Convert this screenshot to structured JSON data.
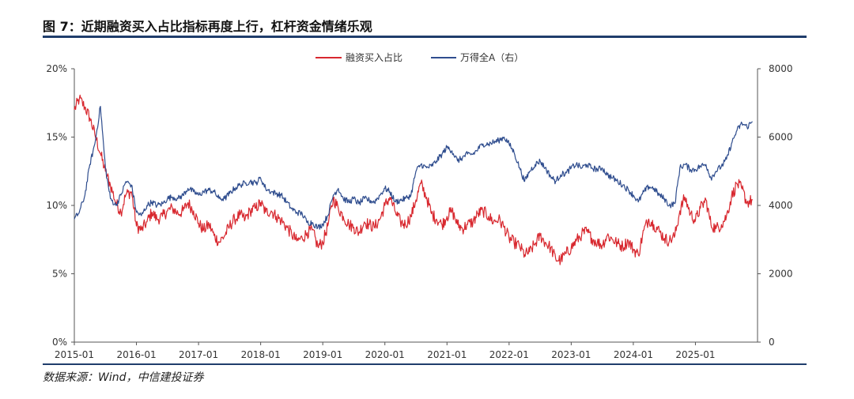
{
  "header": {
    "title": "图 7：近期融资买入占比指标再度上行，杠杆资金情绪乐观"
  },
  "footer": {
    "source": "数据来源：Wind，中信建投证券"
  },
  "colors": {
    "red_series": "#d8282f",
    "blue_series": "#2f4d8e",
    "rule": "#1f3d6b",
    "axis": "#555555"
  },
  "chart_data": {
    "type": "line",
    "title": "",
    "legend": [
      "融资买入占比",
      "万得全A（右）"
    ],
    "legend_placement": "top-center",
    "x_ticks": [
      "2015-01",
      "2016-01",
      "2017-01",
      "2018-01",
      "2019-01",
      "2020-01",
      "2021-01",
      "2022-01",
      "2023-01",
      "2024-01",
      "2025-01"
    ],
    "x_range": [
      2015.0,
      2026.0
    ],
    "y_left": {
      "ticks": [
        "0%",
        "5%",
        "10%",
        "15%",
        "20%"
      ],
      "range": [
        0,
        20
      ]
    },
    "y_right": {
      "ticks": [
        "0",
        "2000",
        "4000",
        "6000",
        "8000"
      ],
      "range": [
        0,
        8000
      ]
    },
    "series": [
      {
        "name": "融资买入占比",
        "axis": "left",
        "points": [
          [
            2015.0,
            17.0
          ],
          [
            2015.08,
            17.8
          ],
          [
            2015.17,
            17.2
          ],
          [
            2015.25,
            16.4
          ],
          [
            2015.33,
            15.2
          ],
          [
            2015.42,
            13.8
          ],
          [
            2015.5,
            12.5
          ],
          [
            2015.58,
            11.5
          ],
          [
            2015.67,
            10.2
          ],
          [
            2015.75,
            9.5
          ],
          [
            2015.83,
            10.8
          ],
          [
            2015.92,
            11.0
          ],
          [
            2016.0,
            8.5
          ],
          [
            2016.08,
            8.2
          ],
          [
            2016.17,
            8.8
          ],
          [
            2016.25,
            9.5
          ],
          [
            2016.33,
            9.0
          ],
          [
            2016.42,
            9.2
          ],
          [
            2016.5,
            9.6
          ],
          [
            2016.58,
            9.8
          ],
          [
            2016.67,
            9.4
          ],
          [
            2016.75,
            9.6
          ],
          [
            2016.83,
            10.2
          ],
          [
            2016.92,
            9.6
          ],
          [
            2017.0,
            8.7
          ],
          [
            2017.08,
            8.2
          ],
          [
            2017.17,
            8.6
          ],
          [
            2017.25,
            7.8
          ],
          [
            2017.33,
            7.3
          ],
          [
            2017.42,
            7.8
          ],
          [
            2017.5,
            8.5
          ],
          [
            2017.58,
            9.0
          ],
          [
            2017.67,
            9.3
          ],
          [
            2017.75,
            9.0
          ],
          [
            2017.83,
            9.6
          ],
          [
            2017.92,
            9.8
          ],
          [
            2018.0,
            10.2
          ],
          [
            2018.08,
            9.5
          ],
          [
            2018.17,
            9.6
          ],
          [
            2018.25,
            9.2
          ],
          [
            2018.33,
            8.9
          ],
          [
            2018.42,
            8.4
          ],
          [
            2018.5,
            7.9
          ],
          [
            2018.58,
            7.4
          ],
          [
            2018.67,
            7.6
          ],
          [
            2018.75,
            8.0
          ],
          [
            2018.83,
            8.2
          ],
          [
            2018.92,
            7.0
          ],
          [
            2019.0,
            7.3
          ],
          [
            2019.08,
            8.5
          ],
          [
            2019.17,
            10.5
          ],
          [
            2019.25,
            9.8
          ],
          [
            2019.33,
            9.2
          ],
          [
            2019.42,
            8.6
          ],
          [
            2019.5,
            8.4
          ],
          [
            2019.58,
            8.0
          ],
          [
            2019.67,
            8.8
          ],
          [
            2019.75,
            8.6
          ],
          [
            2019.83,
            8.4
          ],
          [
            2019.92,
            9.0
          ],
          [
            2020.0,
            10.0
          ],
          [
            2020.08,
            10.6
          ],
          [
            2020.17,
            9.5
          ],
          [
            2020.25,
            8.8
          ],
          [
            2020.33,
            8.6
          ],
          [
            2020.42,
            9.2
          ],
          [
            2020.5,
            10.4
          ],
          [
            2020.58,
            11.6
          ],
          [
            2020.67,
            10.6
          ],
          [
            2020.75,
            9.4
          ],
          [
            2020.83,
            9.0
          ],
          [
            2020.92,
            8.6
          ],
          [
            2021.0,
            9.2
          ],
          [
            2021.08,
            9.6
          ],
          [
            2021.17,
            8.6
          ],
          [
            2021.25,
            8.3
          ],
          [
            2021.33,
            8.6
          ],
          [
            2021.42,
            8.8
          ],
          [
            2021.5,
            9.4
          ],
          [
            2021.58,
            9.6
          ],
          [
            2021.67,
            9.2
          ],
          [
            2021.75,
            8.8
          ],
          [
            2021.83,
            9.0
          ],
          [
            2021.92,
            8.4
          ],
          [
            2022.0,
            7.6
          ],
          [
            2022.08,
            7.3
          ],
          [
            2022.17,
            7.0
          ],
          [
            2022.25,
            6.4
          ],
          [
            2022.33,
            6.6
          ],
          [
            2022.42,
            7.2
          ],
          [
            2022.5,
            7.8
          ],
          [
            2022.58,
            7.3
          ],
          [
            2022.67,
            6.9
          ],
          [
            2022.75,
            6.1
          ],
          [
            2022.83,
            6.0
          ],
          [
            2022.92,
            6.5
          ],
          [
            2023.0,
            6.9
          ],
          [
            2023.08,
            7.4
          ],
          [
            2023.17,
            7.9
          ],
          [
            2023.25,
            8.1
          ],
          [
            2023.33,
            7.6
          ],
          [
            2023.42,
            7.3
          ],
          [
            2023.5,
            7.1
          ],
          [
            2023.58,
            7.8
          ],
          [
            2023.67,
            7.5
          ],
          [
            2023.75,
            7.2
          ],
          [
            2023.83,
            7.0
          ],
          [
            2023.92,
            7.4
          ],
          [
            2024.0,
            6.8
          ],
          [
            2024.08,
            6.4
          ],
          [
            2024.17,
            8.2
          ],
          [
            2024.25,
            9.0
          ],
          [
            2024.33,
            8.6
          ],
          [
            2024.42,
            8.1
          ],
          [
            2024.5,
            7.6
          ],
          [
            2024.58,
            7.4
          ],
          [
            2024.67,
            7.8
          ],
          [
            2024.75,
            9.6
          ],
          [
            2024.83,
            10.6
          ],
          [
            2024.92,
            9.4
          ],
          [
            2025.0,
            8.9
          ],
          [
            2025.08,
            9.8
          ],
          [
            2025.17,
            10.4
          ],
          [
            2025.25,
            8.6
          ],
          [
            2025.33,
            8.3
          ],
          [
            2025.42,
            8.6
          ],
          [
            2025.5,
            9.2
          ],
          [
            2025.58,
            10.6
          ],
          [
            2025.67,
            11.6
          ],
          [
            2025.75,
            11.2
          ],
          [
            2025.83,
            10.2
          ],
          [
            2025.92,
            10.4
          ]
        ]
      },
      {
        "name": "万得全A（右）",
        "axis": "right",
        "points": [
          [
            2015.0,
            3600
          ],
          [
            2015.08,
            3800
          ],
          [
            2015.17,
            4300
          ],
          [
            2015.25,
            5200
          ],
          [
            2015.33,
            5800
          ],
          [
            2015.42,
            6900
          ],
          [
            2015.5,
            5100
          ],
          [
            2015.58,
            4200
          ],
          [
            2015.67,
            4000
          ],
          [
            2015.75,
            4300
          ],
          [
            2015.83,
            4700
          ],
          [
            2015.92,
            4600
          ],
          [
            2016.0,
            3800
          ],
          [
            2016.08,
            3700
          ],
          [
            2016.17,
            4000
          ],
          [
            2016.25,
            4100
          ],
          [
            2016.33,
            4000
          ],
          [
            2016.42,
            4050
          ],
          [
            2016.5,
            4200
          ],
          [
            2016.58,
            4250
          ],
          [
            2016.67,
            4200
          ],
          [
            2016.75,
            4300
          ],
          [
            2016.83,
            4500
          ],
          [
            2016.92,
            4400
          ],
          [
            2017.0,
            4300
          ],
          [
            2017.08,
            4400
          ],
          [
            2017.17,
            4450
          ],
          [
            2017.25,
            4400
          ],
          [
            2017.33,
            4200
          ],
          [
            2017.42,
            4200
          ],
          [
            2017.5,
            4350
          ],
          [
            2017.58,
            4500
          ],
          [
            2017.67,
            4600
          ],
          [
            2017.75,
            4650
          ],
          [
            2017.83,
            4700
          ],
          [
            2017.92,
            4650
          ],
          [
            2018.0,
            4800
          ],
          [
            2018.08,
            4500
          ],
          [
            2018.17,
            4400
          ],
          [
            2018.25,
            4350
          ],
          [
            2018.33,
            4300
          ],
          [
            2018.42,
            4100
          ],
          [
            2018.5,
            3900
          ],
          [
            2018.58,
            3800
          ],
          [
            2018.67,
            3750
          ],
          [
            2018.75,
            3500
          ],
          [
            2018.83,
            3500
          ],
          [
            2018.92,
            3350
          ],
          [
            2019.0,
            3450
          ],
          [
            2019.08,
            3700
          ],
          [
            2019.17,
            4300
          ],
          [
            2019.25,
            4500
          ],
          [
            2019.33,
            4200
          ],
          [
            2019.42,
            4100
          ],
          [
            2019.5,
            4200
          ],
          [
            2019.58,
            4050
          ],
          [
            2019.67,
            4200
          ],
          [
            2019.75,
            4150
          ],
          [
            2019.83,
            4100
          ],
          [
            2019.92,
            4300
          ],
          [
            2020.0,
            4500
          ],
          [
            2020.08,
            4400
          ],
          [
            2020.17,
            4100
          ],
          [
            2020.25,
            4150
          ],
          [
            2020.33,
            4200
          ],
          [
            2020.42,
            4300
          ],
          [
            2020.5,
            5000
          ],
          [
            2020.58,
            5200
          ],
          [
            2020.67,
            5100
          ],
          [
            2020.75,
            5150
          ],
          [
            2020.83,
            5300
          ],
          [
            2020.92,
            5500
          ],
          [
            2021.0,
            5700
          ],
          [
            2021.08,
            5600
          ],
          [
            2021.17,
            5300
          ],
          [
            2021.25,
            5400
          ],
          [
            2021.33,
            5500
          ],
          [
            2021.42,
            5500
          ],
          [
            2021.5,
            5650
          ],
          [
            2021.58,
            5800
          ],
          [
            2021.67,
            5800
          ],
          [
            2021.75,
            5850
          ],
          [
            2021.83,
            5900
          ],
          [
            2021.92,
            6000
          ],
          [
            2022.0,
            5800
          ],
          [
            2022.08,
            5550
          ],
          [
            2022.17,
            5100
          ],
          [
            2022.25,
            4700
          ],
          [
            2022.33,
            5000
          ],
          [
            2022.42,
            5200
          ],
          [
            2022.5,
            5300
          ],
          [
            2022.58,
            5100
          ],
          [
            2022.67,
            4850
          ],
          [
            2022.75,
            4700
          ],
          [
            2022.83,
            4900
          ],
          [
            2022.92,
            4950
          ],
          [
            2023.0,
            5100
          ],
          [
            2023.08,
            5200
          ],
          [
            2023.17,
            5100
          ],
          [
            2023.25,
            5200
          ],
          [
            2023.33,
            5100
          ],
          [
            2023.42,
            5050
          ],
          [
            2023.5,
            5100
          ],
          [
            2023.58,
            4900
          ],
          [
            2023.67,
            4800
          ],
          [
            2023.75,
            4700
          ],
          [
            2023.83,
            4600
          ],
          [
            2023.92,
            4450
          ],
          [
            2024.0,
            4300
          ],
          [
            2024.08,
            4100
          ],
          [
            2024.17,
            4400
          ],
          [
            2024.25,
            4550
          ],
          [
            2024.33,
            4500
          ],
          [
            2024.42,
            4300
          ],
          [
            2024.5,
            4200
          ],
          [
            2024.58,
            4000
          ],
          [
            2024.67,
            4050
          ],
          [
            2024.75,
            5100
          ],
          [
            2024.83,
            5200
          ],
          [
            2024.92,
            5050
          ],
          [
            2025.0,
            5050
          ],
          [
            2025.08,
            5150
          ],
          [
            2025.17,
            5200
          ],
          [
            2025.25,
            4800
          ],
          [
            2025.33,
            5000
          ],
          [
            2025.42,
            5150
          ],
          [
            2025.5,
            5350
          ],
          [
            2025.58,
            5800
          ],
          [
            2025.67,
            6200
          ],
          [
            2025.75,
            6400
          ],
          [
            2025.83,
            6300
          ],
          [
            2025.92,
            6450
          ]
        ]
      }
    ]
  }
}
